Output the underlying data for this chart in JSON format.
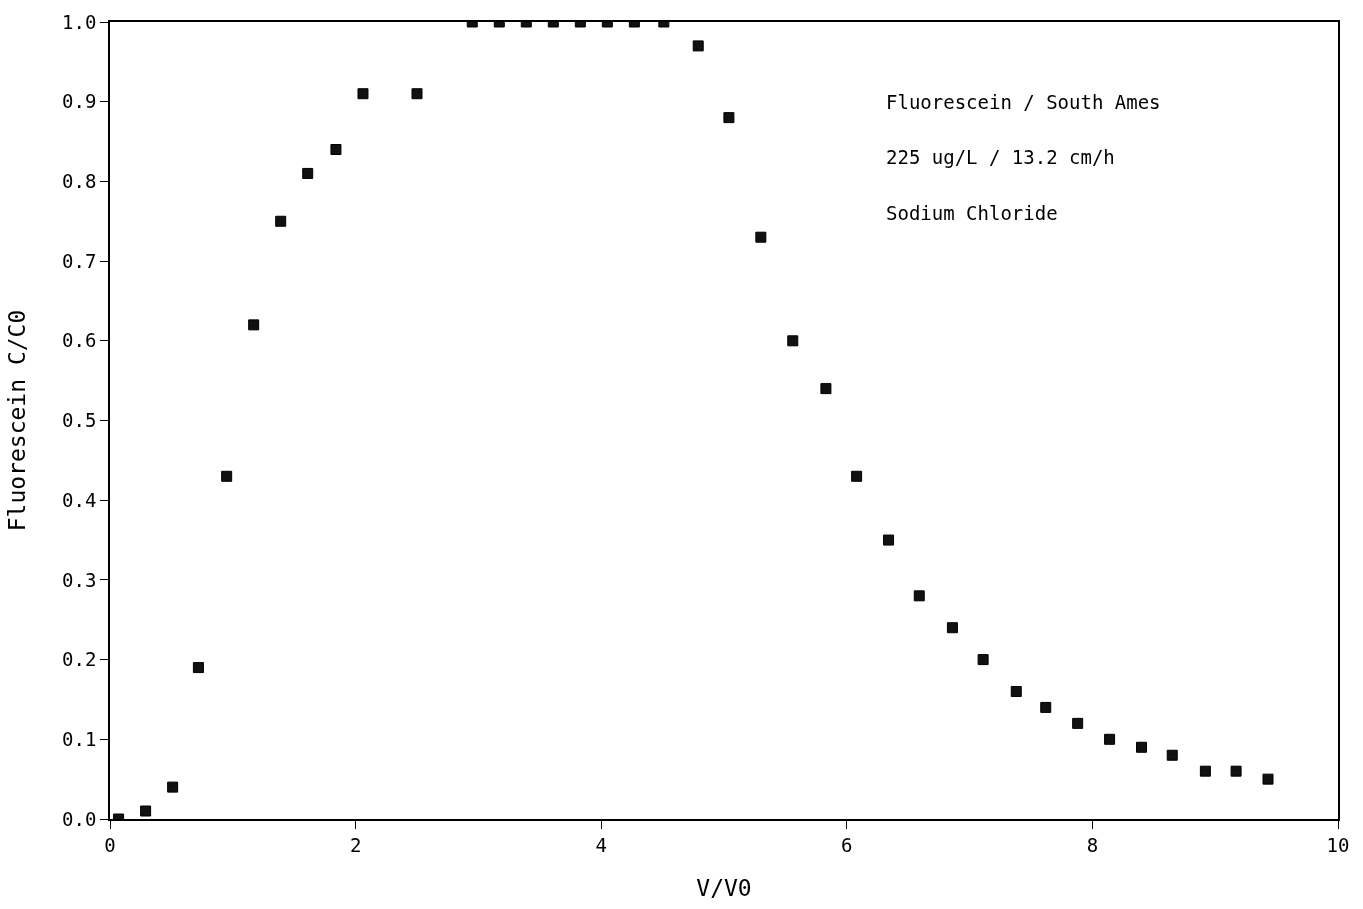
{
  "chart_data": {
    "type": "scatter",
    "xlabel": "V/V0",
    "ylabel": "Fluorescein C/C0",
    "annotations": [
      "Fluorescein / South Ames",
      "225 ug/L / 13.2 cm/h",
      "Sodium Chloride"
    ],
    "x": [
      0.07,
      0.29,
      0.51,
      0.72,
      0.95,
      1.17,
      1.39,
      1.61,
      1.84,
      2.06,
      2.5,
      2.95,
      3.17,
      3.39,
      3.61,
      3.83,
      4.05,
      4.27,
      4.51,
      4.79,
      5.04,
      5.3,
      5.56,
      5.83,
      6.08,
      6.34,
      6.59,
      6.86,
      7.11,
      7.38,
      7.62,
      7.88,
      8.14,
      8.4,
      8.65,
      8.92,
      9.17,
      9.43
    ],
    "series": [
      {
        "color": "#111111",
        "values": [
          0.0,
          0.01,
          0.04,
          0.19,
          0.43,
          0.62,
          0.75,
          0.81,
          0.84,
          0.91,
          0.91,
          1.0,
          1.0,
          1.0,
          1.0,
          1.0,
          1.0,
          1.0,
          1.0,
          0.97,
          0.88,
          0.73,
          0.6,
          0.54,
          0.43,
          0.35,
          0.28,
          0.24,
          0.2,
          0.16,
          0.14,
          0.12,
          0.1,
          0.09,
          0.08,
          0.06,
          0.06,
          0.05
        ]
      }
    ],
    "marker": "square",
    "xlim": [
      0,
      10
    ],
    "xticks": [
      0,
      2,
      4,
      6,
      8,
      10
    ],
    "ylim": [
      0,
      1.0
    ],
    "yticks": [
      {
        "value": 0,
        "label": "0.0"
      },
      {
        "value": 0.1,
        "label": "0.1"
      },
      {
        "value": 0.2,
        "label": "0.2"
      },
      {
        "value": 0.3,
        "label": "0.3"
      },
      {
        "value": 0.4,
        "label": "0.4"
      },
      {
        "value": 0.5,
        "label": "0.5"
      },
      {
        "value": 0.6,
        "label": "0.6"
      },
      {
        "value": 0.7,
        "label": "0.7"
      },
      {
        "value": 0.8,
        "label": "0.8"
      },
      {
        "value": 0.9,
        "label": "0.9"
      },
      {
        "value": 1.0,
        "label": "1.0"
      }
    ]
  }
}
